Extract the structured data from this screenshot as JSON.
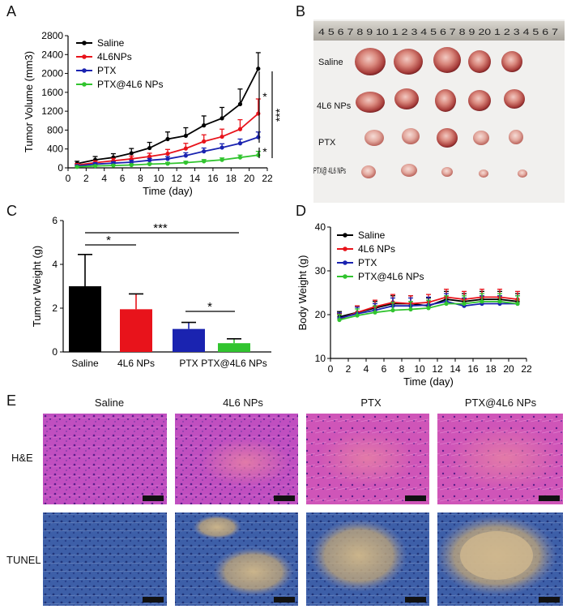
{
  "panels": {
    "A": "A",
    "B": "B",
    "C": "C",
    "D": "D",
    "E": "E"
  },
  "colors": {
    "saline": "#000000",
    "4l6": "#e8131b",
    "ptx": "#1a23b0",
    "ptx4l6": "#31c42f"
  },
  "chart_data": [
    {
      "id": "A",
      "type": "line",
      "xlabel": "Time (day)",
      "ylabel": "Tumor Volume (mm3)",
      "xlim": [
        0,
        22
      ],
      "ylim": [
        0,
        2800
      ],
      "xticks": [
        0,
        2,
        4,
        6,
        8,
        10,
        12,
        14,
        16,
        18,
        20,
        22
      ],
      "yticks": [
        0,
        400,
        800,
        1200,
        1600,
        2000,
        2400,
        2800
      ],
      "x": [
        1,
        3,
        5,
        7,
        9,
        11,
        13,
        15,
        17,
        19,
        21
      ],
      "legend": [
        "Saline",
        "4L6NPs",
        "PTX",
        "PTX@4L6 NPs"
      ],
      "series": [
        {
          "name": "Saline",
          "values": [
            90,
            170,
            220,
            310,
            420,
            610,
            680,
            900,
            1050,
            1350,
            2100
          ],
          "err": [
            50,
            70,
            80,
            100,
            120,
            150,
            170,
            200,
            230,
            320,
            340
          ]
        },
        {
          "name": "4L6NPs",
          "values": [
            60,
            110,
            150,
            190,
            240,
            300,
            410,
            560,
            660,
            820,
            1150
          ],
          "err": [
            30,
            40,
            50,
            60,
            70,
            90,
            110,
            140,
            160,
            200,
            310
          ]
        },
        {
          "name": "PTX",
          "values": [
            40,
            80,
            100,
            120,
            160,
            190,
            260,
            350,
            430,
            520,
            650
          ],
          "err": [
            20,
            30,
            30,
            40,
            40,
            50,
            60,
            70,
            80,
            90,
            110
          ]
        },
        {
          "name": "PTX@4L6 NPs",
          "values": [
            20,
            40,
            50,
            60,
            80,
            90,
            110,
            140,
            170,
            220,
            270
          ],
          "err": [
            10,
            15,
            15,
            20,
            20,
            25,
            30,
            35,
            40,
            50,
            80
          ]
        }
      ],
      "significance": [
        "*",
        "***",
        "*"
      ]
    },
    {
      "id": "C",
      "type": "bar",
      "ylabel": "Tumor Weight (g)",
      "ylim": [
        0,
        6
      ],
      "yticks": [
        0,
        2,
        4,
        6
      ],
      "categories": [
        "Saline",
        "4L6 NPs",
        "PTX",
        "PTX@4L6 NPs"
      ],
      "values": [
        3.0,
        1.95,
        1.05,
        0.4
      ],
      "err": [
        1.45,
        0.7,
        0.3,
        0.2
      ],
      "significance": [
        "*",
        "***",
        "*"
      ]
    },
    {
      "id": "D",
      "type": "line",
      "xlabel": "Time (day)",
      "ylabel": "Body Weight (g)",
      "xlim": [
        0,
        22
      ],
      "ylim": [
        10,
        40
      ],
      "xticks": [
        0,
        2,
        4,
        6,
        8,
        10,
        12,
        14,
        16,
        18,
        20,
        22
      ],
      "yticks": [
        10,
        20,
        30,
        40
      ],
      "x": [
        1,
        3,
        5,
        7,
        9,
        11,
        13,
        15,
        17,
        19,
        21
      ],
      "legend": [
        "Saline",
        "4L6 NPs",
        "PTX",
        "PTX@4L6 NPs"
      ],
      "series": [
        {
          "name": "Saline",
          "values": [
            19.5,
            20.5,
            21.5,
            22.5,
            22.5,
            22.0,
            23.5,
            23.0,
            23.5,
            23.5,
            23.0
          ],
          "err": [
            1.2,
            1.5,
            1.5,
            1.8,
            1.8,
            1.8,
            1.8,
            1.8,
            1.8,
            1.8,
            1.8
          ]
        },
        {
          "name": "4L6 NPs",
          "values": [
            19.0,
            20.5,
            21.8,
            22.8,
            22.5,
            22.8,
            24.0,
            23.5,
            24.0,
            24.0,
            23.5
          ],
          "err": [
            1.2,
            1.5,
            1.5,
            1.8,
            1.8,
            1.8,
            1.8,
            1.8,
            1.8,
            1.8,
            1.8
          ]
        },
        {
          "name": "PTX",
          "values": [
            19.2,
            20.2,
            21.0,
            22.0,
            22.0,
            22.2,
            23.0,
            22.0,
            22.5,
            22.5,
            22.5
          ],
          "err": [
            1.2,
            1.5,
            1.5,
            1.8,
            1.8,
            1.8,
            1.8,
            1.8,
            1.8,
            1.8,
            1.8
          ]
        },
        {
          "name": "PTX@4L6 NPs",
          "values": [
            18.8,
            19.8,
            20.5,
            21.0,
            21.2,
            21.5,
            22.5,
            22.5,
            23.0,
            23.0,
            22.5
          ],
          "err": [
            1.2,
            1.5,
            1.5,
            1.8,
            1.8,
            1.8,
            1.8,
            1.8,
            1.8,
            1.8,
            1.8
          ]
        }
      ]
    }
  ],
  "photo_b": {
    "ruler_text": "4 5 6 7 8 9 10 1 2 3 4 5 6 7 8 9 20 1 2 3 4 5 6 7",
    "rows": [
      "Saline",
      "4L6 NPs",
      "PTX",
      "PTX@ 4L6 NPs"
    ]
  },
  "panel_e": {
    "columns": [
      "Saline",
      "4L6 NPs",
      "PTX",
      "PTX@4L6 NPs"
    ],
    "rows": [
      "H&E",
      "TUNEL"
    ]
  }
}
